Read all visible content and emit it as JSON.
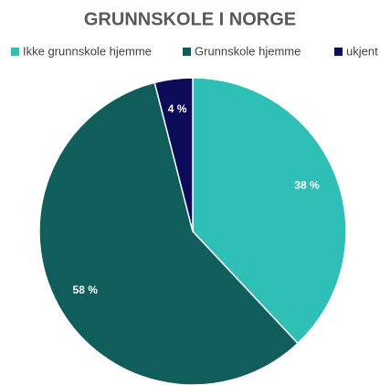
{
  "chart_data": {
    "type": "pie",
    "title": "GRUNNSKOLE I NORGE",
    "categories": [
      "Ikke grunnskole hjemme",
      "Grunnskole hjemme",
      "ukjent"
    ],
    "values": [
      38,
      58,
      4
    ],
    "value_labels": [
      "38 %",
      "58 %",
      "4 %"
    ],
    "colors": [
      "#2ebfb7",
      "#0f5e5c",
      "#0b0b5a"
    ],
    "legend": "top"
  }
}
